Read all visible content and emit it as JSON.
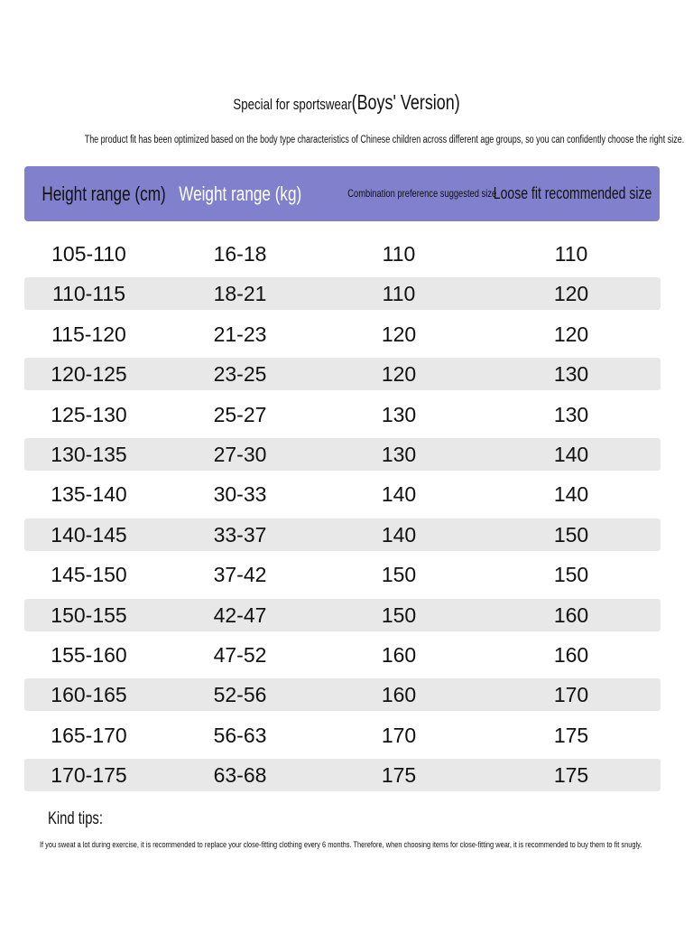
{
  "title": {
    "prefix": "Special for sportswear",
    "suffix": "(Boys' Version)"
  },
  "subtitle": "The product fit has been optimized based on the body type characteristics of Chinese children across different age groups, so you can confidently choose the right size.",
  "colors": {
    "header_bg": "#8080cc",
    "stripe": "#e8e8e8"
  },
  "table": {
    "headers": [
      "Height range (cm)",
      "Weight range (kg)",
      "Combination preference suggested size",
      "Loose fit recommended size"
    ],
    "rows": [
      [
        "105-110",
        "16-18",
        "110",
        "110"
      ],
      [
        "110-115",
        "18-21",
        "110",
        "120"
      ],
      [
        "115-120",
        "21-23",
        "120",
        "120"
      ],
      [
        "120-125",
        "23-25",
        "120",
        "130"
      ],
      [
        "125-130",
        "25-27",
        "130",
        "130"
      ],
      [
        "130-135",
        "27-30",
        "130",
        "140"
      ],
      [
        "135-140",
        "30-33",
        "140",
        "140"
      ],
      [
        "140-145",
        "33-37",
        "140",
        "150"
      ],
      [
        "145-150",
        "37-42",
        "150",
        "150"
      ],
      [
        "150-155",
        "42-47",
        "150",
        "160"
      ],
      [
        "155-160",
        "47-52",
        "160",
        "160"
      ],
      [
        "160-165",
        "52-56",
        "160",
        "170"
      ],
      [
        "165-170",
        "56-63",
        "170",
        "175"
      ],
      [
        "170-175",
        "63-68",
        "175",
        "175"
      ]
    ]
  },
  "tips": {
    "label": "Kind tips:",
    "text": "If you sweat a lot during exercise, it is recommended to replace your close-fitting clothing every 6 months. Therefore, when choosing items for close-fitting wear, it is recommended to buy them to fit snugly."
  }
}
